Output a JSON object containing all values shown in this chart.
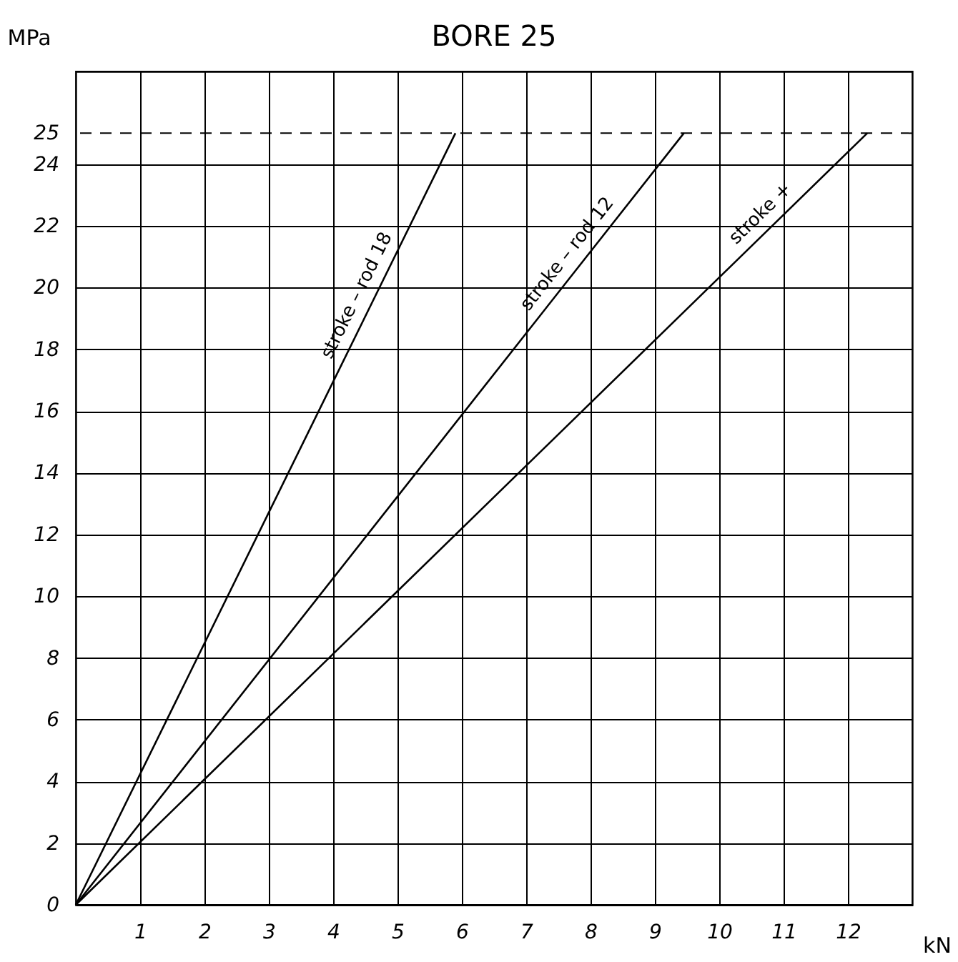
{
  "chart_data": {
    "type": "line",
    "title": "BORE 25",
    "xlabel": "kN",
    "ylabel": "MPa",
    "xlim": [
      0,
      13
    ],
    "ylim": [
      0,
      27
    ],
    "xticks": [
      1,
      2,
      3,
      4,
      5,
      6,
      7,
      8,
      9,
      10,
      11,
      12
    ],
    "yticks": [
      0,
      2,
      4,
      6,
      8,
      10,
      12,
      14,
      16,
      18,
      20,
      22,
      24,
      25
    ],
    "grid": true,
    "marker": "none",
    "line_style": "solid",
    "series": [
      {
        "name": "stroke – rod 18",
        "color": "#000000",
        "x": [
          0,
          5.9
        ],
        "values": [
          0,
          25
        ]
      },
      {
        "name": "stroke – rod 12",
        "color": "#000000",
        "x": [
          0,
          9.45
        ],
        "values": [
          0,
          25
        ]
      },
      {
        "name": "stroke +",
        "color": "#000000",
        "x": [
          0,
          12.3
        ],
        "values": [
          0,
          25
        ]
      }
    ],
    "ref_lines": [
      {
        "axis": "y",
        "value": 25,
        "line_style": "dashed",
        "color": "#000000"
      }
    ]
  }
}
